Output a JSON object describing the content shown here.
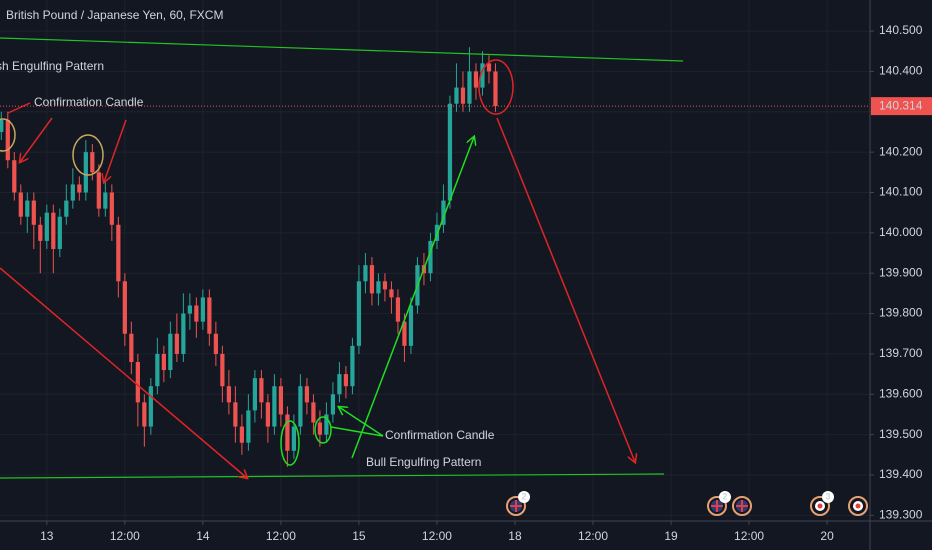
{
  "chart_data": {
    "type": "candlestick",
    "title": "British Pound / Japanese Yen, 60, FXCM",
    "x": [
      -7,
      -6,
      -5,
      -4,
      -3,
      -2,
      -1,
      0,
      1,
      2,
      3,
      4,
      5,
      6,
      7,
      8,
      9,
      10,
      11,
      12,
      13,
      14,
      15,
      16,
      17,
      18,
      19,
      20,
      21,
      22,
      23,
      24,
      25,
      26,
      27,
      28,
      29,
      30,
      31,
      32,
      33,
      34,
      35,
      36,
      37,
      38,
      39,
      40,
      41,
      42,
      43,
      44,
      45,
      46,
      47,
      48,
      49,
      50,
      51,
      52,
      53,
      54,
      55,
      56,
      57,
      58,
      59,
      60,
      61,
      62,
      63,
      64,
      65,
      66,
      67,
      68,
      69
    ],
    "open": [
      140.25,
      140.28,
      140.18,
      140.1,
      140.04,
      140.08,
      140.02,
      139.98,
      140.05,
      139.96,
      140.04,
      140.08,
      140.12,
      140.1,
      140.2,
      140.15,
      140.06,
      140.1,
      140.02,
      139.88,
      139.75,
      139.68,
      139.58,
      139.52,
      139.62,
      139.7,
      139.66,
      139.75,
      139.7,
      139.8,
      139.82,
      139.78,
      139.84,
      139.75,
      139.7,
      139.62,
      139.58,
      139.52,
      139.48,
      139.56,
      139.64,
      139.58,
      139.52,
      139.62,
      139.55,
      139.46,
      139.52,
      139.62,
      139.58,
      139.53,
      139.5,
      139.55,
      139.6,
      139.65,
      139.62,
      139.72,
      139.88,
      139.92,
      139.85,
      139.88,
      139.86,
      139.84,
      139.78,
      139.72,
      139.82,
      139.92,
      139.9,
      139.98,
      140.02,
      140.08,
      140.32,
      140.36,
      140.32,
      140.4,
      140.36,
      140.42,
      140.4
    ],
    "high": [
      140.3,
      140.3,
      140.2,
      140.12,
      140.1,
      140.1,
      140.04,
      140.07,
      140.07,
      140.06,
      140.12,
      140.16,
      140.14,
      140.23,
      140.22,
      140.17,
      140.13,
      140.12,
      140.04,
      139.9,
      139.78,
      139.7,
      139.6,
      139.64,
      139.74,
      139.72,
      139.78,
      139.8,
      139.85,
      139.85,
      139.84,
      139.86,
      139.86,
      139.78,
      139.72,
      139.66,
      139.62,
      139.55,
      139.6,
      139.66,
      139.66,
      139.6,
      139.65,
      139.64,
      139.57,
      139.55,
      139.65,
      139.64,
      139.6,
      139.56,
      139.58,
      139.63,
      139.68,
      139.67,
      139.74,
      139.92,
      139.95,
      139.94,
      139.9,
      139.9,
      139.88,
      139.86,
      139.8,
      139.84,
      139.94,
      139.95,
      140.0,
      140.05,
      140.12,
      140.34,
      140.42,
      140.4,
      140.46,
      140.42,
      140.45,
      140.44,
      140.42
    ],
    "low": [
      140.23,
      140.16,
      140.08,
      140.02,
      140.0,
      139.96,
      139.9,
      139.96,
      139.9,
      139.94,
      140.02,
      140.06,
      140.08,
      140.08,
      140.13,
      140.04,
      140.04,
      139.98,
      139.84,
      139.72,
      139.65,
      139.52,
      139.47,
      139.5,
      139.6,
      139.63,
      139.64,
      139.68,
      139.68,
      139.76,
      139.74,
      139.76,
      139.72,
      139.67,
      139.58,
      139.55,
      139.48,
      139.45,
      139.46,
      139.53,
      139.54,
      139.48,
      139.5,
      139.52,
      139.42,
      139.44,
      139.5,
      139.55,
      139.5,
      139.47,
      139.48,
      139.53,
      139.58,
      139.59,
      139.6,
      139.7,
      139.85,
      139.82,
      139.82,
      139.83,
      139.8,
      139.75,
      139.68,
      139.7,
      139.8,
      139.87,
      139.88,
      139.96,
      140.0,
      140.06,
      140.3,
      140.3,
      140.3,
      140.33,
      140.34,
      140.37,
      140.3
    ],
    "close": [
      140.28,
      140.18,
      140.1,
      140.04,
      140.08,
      140.02,
      139.98,
      140.05,
      139.96,
      140.04,
      140.08,
      140.12,
      140.1,
      140.2,
      140.15,
      140.06,
      140.1,
      140.02,
      139.88,
      139.75,
      139.68,
      139.58,
      139.52,
      139.62,
      139.7,
      139.66,
      139.75,
      139.7,
      139.8,
      139.82,
      139.78,
      139.84,
      139.75,
      139.7,
      139.62,
      139.58,
      139.52,
      139.48,
      139.56,
      139.64,
      139.58,
      139.52,
      139.62,
      139.55,
      139.46,
      139.52,
      139.62,
      139.58,
      139.53,
      139.5,
      139.55,
      139.6,
      139.65,
      139.62,
      139.72,
      139.88,
      139.92,
      139.85,
      139.88,
      139.86,
      139.84,
      139.78,
      139.72,
      139.82,
      139.92,
      139.9,
      139.98,
      140.02,
      140.08,
      140.32,
      140.36,
      140.32,
      140.4,
      140.36,
      140.42,
      140.4,
      140.314
    ],
    "up_color": "#26a69a",
    "down_color": "#ef5350",
    "last_price": 140.314,
    "xlim": [
      -7.2,
      126.6
    ],
    "xticks": [
      {
        "value": 0,
        "label": "13"
      },
      {
        "value": 12,
        "label": "12:00"
      },
      {
        "value": 24,
        "label": "14"
      },
      {
        "value": 36,
        "label": "12:00"
      },
      {
        "value": 48,
        "label": "15"
      },
      {
        "value": 60,
        "label": "12:00"
      },
      {
        "value": 72,
        "label": "18"
      },
      {
        "value": 84,
        "label": "12:00"
      },
      {
        "value": 96,
        "label": "19"
      },
      {
        "value": 108,
        "label": "12:00"
      },
      {
        "value": 120,
        "label": "20"
      }
    ],
    "ylim": [
      139.286,
      140.577
    ],
    "yticks": [
      {
        "value": 139.3,
        "label": "139.300"
      },
      {
        "value": 139.4,
        "label": "139.400"
      },
      {
        "value": 139.5,
        "label": "139.500"
      },
      {
        "value": 139.6,
        "label": "139.600"
      },
      {
        "value": 139.7,
        "label": "139.700"
      },
      {
        "value": 139.8,
        "label": "139.800"
      },
      {
        "value": 139.9,
        "label": "139.900"
      },
      {
        "value": 140.0,
        "label": "140.000"
      },
      {
        "value": 140.1,
        "label": "140.100"
      },
      {
        "value": 140.2,
        "label": "140.200"
      },
      {
        "value": 140.3,
        "label": "140.300"
      },
      {
        "value": 140.4,
        "label": "140.400"
      },
      {
        "value": 140.5,
        "label": "140.500"
      }
    ],
    "grid": true,
    "annotations": [
      "sh Engulfing Pattern",
      "Confirmation Candle",
      "Confirmation Candle",
      "Bull Engulfing Pattern"
    ],
    "event_counts": [
      2,
      2,
      3
    ]
  }
}
